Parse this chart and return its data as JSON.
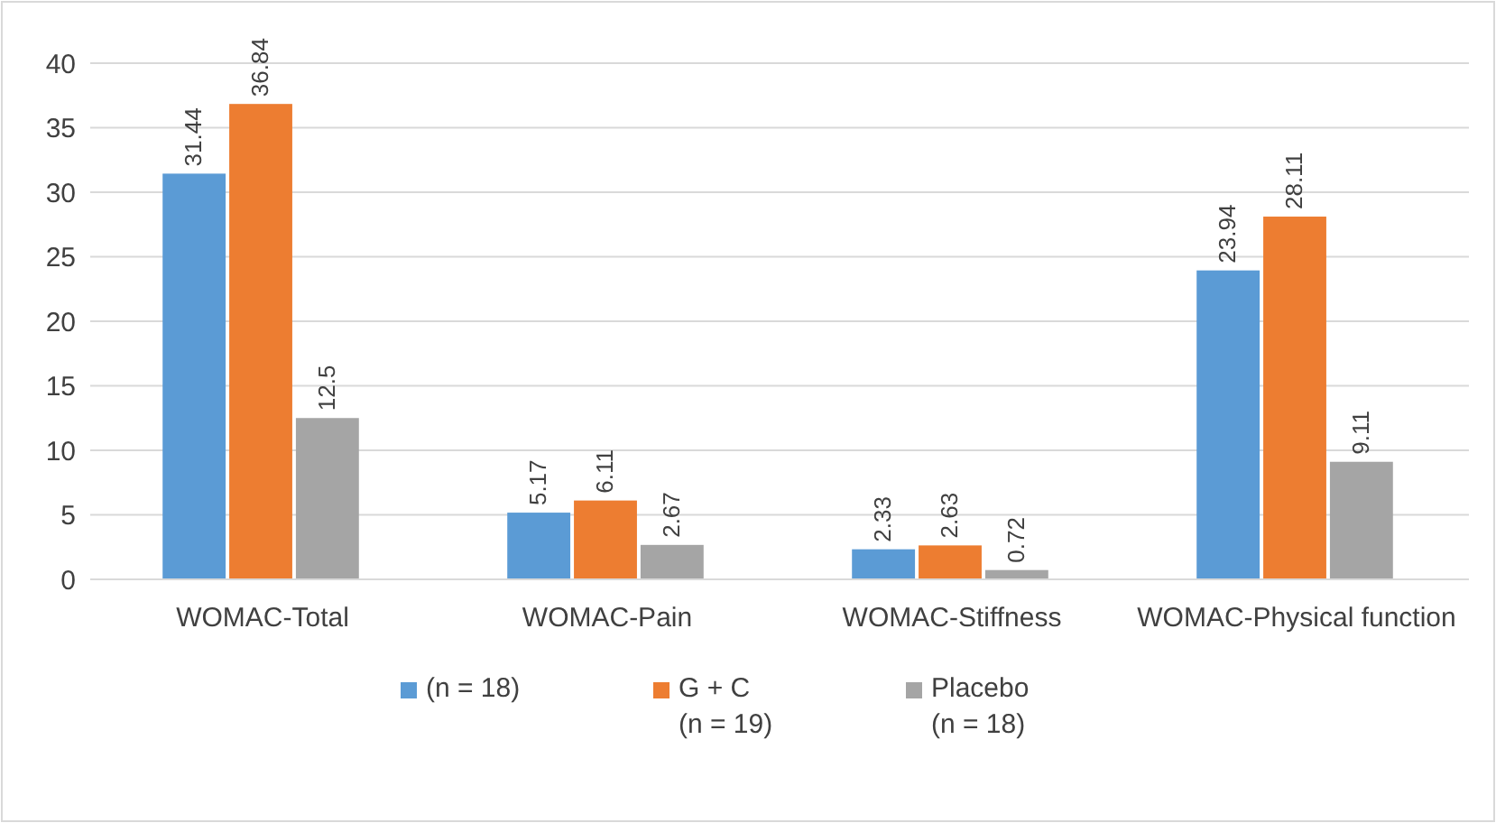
{
  "chart_data": {
    "type": "bar",
    "categories": [
      "WOMAC-Total",
      "WOMAC-Pain",
      "WOMAC-Stiffness",
      "WOMAC-Physical function"
    ],
    "series": [
      {
        "name": "(n = 18)",
        "color": "#5b9bd5",
        "values": [
          31.44,
          5.17,
          2.33,
          23.94
        ]
      },
      {
        "name": "G + C (n = 19)",
        "color": "#ed7d31",
        "values": [
          36.84,
          6.11,
          2.63,
          28.11
        ]
      },
      {
        "name": "Placebo (n = 18)",
        "color": "#a5a5a5",
        "values": [
          12.5,
          2.67,
          0.72,
          9.11
        ]
      }
    ],
    "ylim": [
      0,
      40
    ],
    "yticks": [
      0,
      5,
      10,
      15,
      20,
      25,
      30,
      35,
      40
    ],
    "grid": "y",
    "legend": "bottom",
    "data_labels": true
  }
}
